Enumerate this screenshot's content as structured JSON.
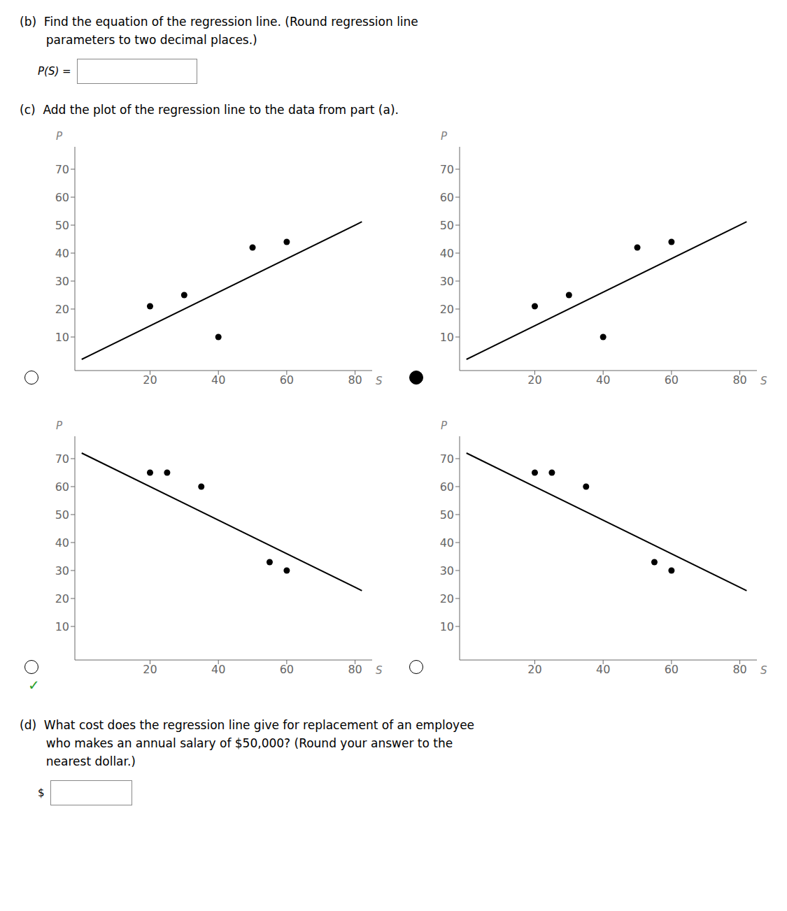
{
  "annotations": [
    "(b)  Find the equation of the regression line. (Round regression line",
    "       parameters to two decimal places.)",
    "P(S) =",
    "(c)  Add the plot of the regression line to the data from part (a).",
    "(d)  What cost does the regression line give for replacement of an employee",
    "       who makes an annual salary of $50,000? (Round your answer to the",
    "       nearest dollar.)",
    "$"
  ],
  "chart_data": [
    {
      "type": "scatter",
      "xlabel": "S",
      "ylabel": "P",
      "xlim": [
        -2,
        85
      ],
      "ylim": [
        -2,
        78
      ],
      "xticks": [
        20,
        40,
        60,
        80
      ],
      "yticks": [
        10,
        20,
        30,
        40,
        50,
        60,
        70
      ],
      "grid": false,
      "series": [
        {
          "type": "scatter",
          "x": [
            20,
            30,
            40,
            50,
            60
          ],
          "values": [
            21,
            25,
            10,
            42,
            44
          ],
          "color": "#000000"
        },
        {
          "type": "line",
          "x": [
            0,
            82
          ],
          "values": [
            2,
            51.2
          ],
          "color": "#000000"
        }
      ]
    },
    {
      "type": "scatter",
      "xlabel": "S",
      "ylabel": "P",
      "xlim": [
        -2,
        85
      ],
      "ylim": [
        -2,
        78
      ],
      "xticks": [
        20,
        40,
        60,
        80
      ],
      "yticks": [
        10,
        20,
        30,
        40,
        50,
        60,
        70
      ],
      "grid": false,
      "series": [
        {
          "type": "scatter",
          "x": [
            20,
            30,
            40,
            50,
            60
          ],
          "values": [
            21,
            25,
            10,
            42,
            44
          ],
          "color": "#000000"
        },
        {
          "type": "line",
          "x": [
            0,
            82
          ],
          "values": [
            2,
            51.2
          ],
          "color": "#000000"
        }
      ]
    },
    {
      "type": "scatter",
      "xlabel": "S",
      "ylabel": "P",
      "xlim": [
        -2,
        85
      ],
      "ylim": [
        -2,
        78
      ],
      "xticks": [
        20,
        40,
        60,
        80
      ],
      "yticks": [
        10,
        20,
        30,
        40,
        50,
        60,
        70
      ],
      "grid": false,
      "annotations": [
        {
          "text": "✓",
          "color": "#2ca02c"
        }
      ],
      "series": [
        {
          "type": "scatter",
          "x": [
            20,
            25,
            35,
            55,
            60
          ],
          "values": [
            65,
            65,
            60,
            33,
            30
          ],
          "color": "#000000"
        },
        {
          "type": "line",
          "x": [
            0,
            82
          ],
          "values": [
            72,
            22.8
          ],
          "color": "#000000"
        }
      ]
    },
    {
      "type": "scatter",
      "xlabel": "S",
      "ylabel": "P",
      "xlim": [
        -2,
        85
      ],
      "ylim": [
        -2,
        78
      ],
      "xticks": [
        20,
        40,
        60,
        80
      ],
      "yticks": [
        10,
        20,
        30,
        40,
        50,
        60,
        70
      ],
      "grid": false,
      "series": [
        {
          "type": "scatter",
          "x": [
            20,
            25,
            35,
            55,
            60
          ],
          "values": [
            65,
            65,
            60,
            33,
            30
          ],
          "color": "#000000"
        },
        {
          "type": "line",
          "x": [
            0,
            82
          ],
          "values": [
            72,
            22.8
          ],
          "color": "#000000"
        }
      ]
    }
  ]
}
